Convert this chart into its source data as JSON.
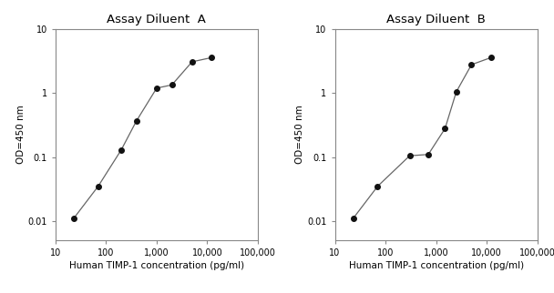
{
  "title_A": "Assay Diluent  A",
  "title_B": "Assay Diluent  B",
  "xlabel": "Human TIMP-1 concentration (pg/ml)",
  "ylabel": "OD=450 nm",
  "x_A": [
    23,
    70,
    200,
    400,
    1000,
    2000,
    5000,
    12000
  ],
  "y_A": [
    0.011,
    0.035,
    0.13,
    0.37,
    1.2,
    1.35,
    3.1,
    3.6
  ],
  "x_B": [
    23,
    70,
    300,
    700,
    1500,
    2500,
    5000,
    12000
  ],
  "y_B": [
    0.011,
    0.035,
    0.105,
    0.11,
    0.28,
    1.05,
    2.8,
    3.6
  ],
  "xlim": [
    10,
    100000
  ],
  "ylim": [
    0.005,
    10
  ],
  "line_color": "#666666",
  "marker_color": "#111111",
  "marker_size": 4,
  "line_width": 0.9,
  "title_fontsize": 9.5,
  "label_fontsize": 7.5,
  "tick_fontsize": 7,
  "bg_color": "#ffffff",
  "xticks": [
    10,
    100,
    1000,
    10000,
    100000
  ],
  "xtick_labels": [
    "10",
    "100",
    "1,000",
    "10,000",
    "100,000"
  ],
  "yticks": [
    0.01,
    0.1,
    1,
    10
  ],
  "ytick_labels": [
    "0.01",
    "0.1",
    "1",
    "10"
  ]
}
